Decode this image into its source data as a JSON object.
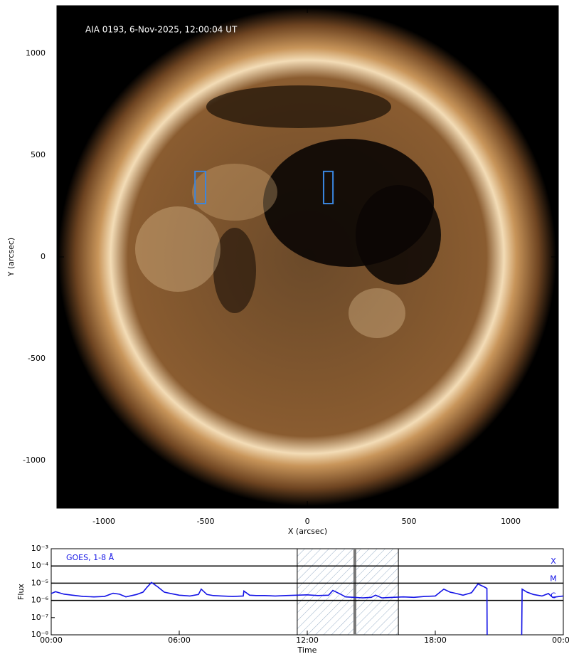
{
  "chart_data": [
    {
      "type": "image",
      "title": "AIA 0193, 6-Nov-2025, 12:00:04 UT",
      "x_label": "X (arcsec)",
      "y_label": "Y (arcsec)",
      "xlim": [
        -1231,
        1234
      ],
      "ylim": [
        -1234,
        1234
      ],
      "xticks": [
        -1000,
        -500,
        0,
        500,
        1000
      ],
      "yticks": [
        -1000,
        -500,
        0,
        500,
        1000
      ],
      "regions": [
        {
          "x": [
            -552,
            -500
          ],
          "y": [
            262,
            420
          ],
          "color": "#3a86e0"
        },
        {
          "x": [
            80,
            126
          ],
          "y": [
            262,
            420
          ],
          "color": "#3a86e0"
        }
      ]
    },
    {
      "type": "line",
      "x_label": "Time",
      "y_label": "Flux",
      "annotation": "GOES, 1-8 Å",
      "log_y": true,
      "xlim": [
        0,
        24
      ],
      "ylim": [
        1e-08,
        0.001
      ],
      "xticks": [
        {
          "value": 0,
          "label": "00:00"
        },
        {
          "value": 6,
          "label": "06:00"
        },
        {
          "value": 12,
          "label": "12:00"
        },
        {
          "value": 18,
          "label": "18:00"
        },
        {
          "value": 24,
          "label": "00:00"
        }
      ],
      "yticks": [
        {
          "value": 0.001,
          "label": "10⁻³"
        },
        {
          "value": 0.0001,
          "label": "10⁻⁴"
        },
        {
          "value": 1e-05,
          "label": "10⁻⁵"
        },
        {
          "value": 1e-06,
          "label": "10⁻⁶"
        },
        {
          "value": 1e-07,
          "label": "10⁻⁷"
        },
        {
          "value": 1e-08,
          "label": "10⁻⁸"
        }
      ],
      "class_lines": [
        {
          "label": "X",
          "value": 0.0001
        },
        {
          "label": "M",
          "value": 1e-05
        },
        {
          "label": "C",
          "value": 1e-06
        }
      ],
      "shaded_span": [
        11.53,
        16.27
      ],
      "marker_x": 14.23,
      "x": [
        0.0,
        0.2,
        0.6,
        1.0,
        1.5,
        2.0,
        2.5,
        2.9,
        3.2,
        3.5,
        4.0,
        4.3,
        4.5,
        4.7,
        5.0,
        5.3,
        5.6,
        6.0,
        6.5,
        6.9,
        7.03,
        7.3,
        7.6,
        8.0,
        8.5,
        9.0,
        9.03,
        9.3,
        9.6,
        10.0,
        10.5,
        11.0,
        11.5,
        12.0,
        12.5,
        13.0,
        13.2,
        13.5,
        13.8,
        14.2,
        14.6,
        15.0,
        15.2,
        15.5,
        16.0,
        16.5,
        17.0,
        17.5,
        18.0,
        18.4,
        18.7,
        19.0,
        19.3,
        19.7,
        20.0,
        20.3,
        20.42,
        20.43,
        21.0,
        22.05,
        22.07,
        22.3,
        22.6,
        23.0,
        23.3,
        23.5,
        24.0
      ],
      "series": [
        {
          "name": "GOES, 1-8 Å",
          "color": "#1414e6",
          "values": [
            2.5e-06,
            3.2e-06,
            2.3e-06,
            2e-06,
            1.7e-06,
            1.6e-06,
            1.7e-06,
            2.6e-06,
            2.3e-06,
            1.6e-06,
            2.2e-06,
            3e-06,
            6e-06,
            1.1e-05,
            6e-06,
            3e-06,
            2.5e-06,
            2e-06,
            1.8e-06,
            2.2e-06,
            4.5e-06,
            2.2e-06,
            1.9e-06,
            1.8e-06,
            1.7e-06,
            1.8e-06,
            3.5e-06,
            2e-06,
            1.9e-06,
            1.9e-06,
            1.8e-06,
            1.9e-06,
            2e-06,
            2.1e-06,
            1.9e-06,
            2e-06,
            3.8e-06,
            2.5e-06,
            1.6e-06,
            1.5e-06,
            1.4e-06,
            1.5e-06,
            2e-06,
            1.4e-06,
            1.5e-06,
            1.6e-06,
            1.5e-06,
            1.7e-06,
            1.8e-06,
            4.5e-06,
            3e-06,
            2.5e-06,
            2e-06,
            2.8e-06,
            9e-06,
            6e-06,
            5e-06,
            1e-08,
            null,
            1e-08,
            4.5e-06,
            3e-06,
            2.2e-06,
            1.8e-06,
            2.5e-06,
            1.5e-06,
            1.8e-06
          ]
        }
      ]
    }
  ]
}
